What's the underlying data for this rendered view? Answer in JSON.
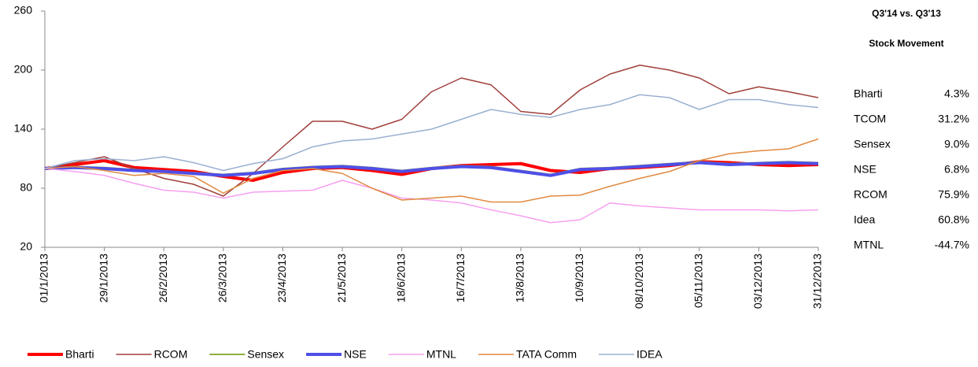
{
  "chart_data": {
    "type": "line",
    "x": [
      "2013-01-01",
      "2013-01-15",
      "2013-01-29",
      "2013-02-12",
      "2013-02-26",
      "2013-03-12",
      "2013-03-26",
      "2013-04-09",
      "2013-04-23",
      "2013-05-07",
      "2013-05-21",
      "2013-06-04",
      "2013-06-18",
      "2013-07-02",
      "2013-07-16",
      "2013-07-30",
      "2013-08-13",
      "2013-08-27",
      "2013-09-10",
      "2013-09-24",
      "2013-10-08",
      "2013-10-22",
      "2013-11-05",
      "2013-11-19",
      "2013-12-03",
      "2013-12-17",
      "2013-12-31"
    ],
    "xlim": [
      "2013-01-01",
      "2013-12-31"
    ],
    "xticks": [
      {
        "value": "2013-01-01",
        "label": "01/1/2013"
      },
      {
        "value": "2013-01-29",
        "label": "29/1/2013"
      },
      {
        "value": "2013-02-26",
        "label": "26/2/2013"
      },
      {
        "value": "2013-03-26",
        "label": "26/3/2013"
      },
      {
        "value": "2013-04-23",
        "label": "23/4/2013"
      },
      {
        "value": "2013-05-21",
        "label": "21/5/2013"
      },
      {
        "value": "2013-06-18",
        "label": "18/6/2013"
      },
      {
        "value": "2013-07-16",
        "label": "16/7/2013"
      },
      {
        "value": "2013-08-13",
        "label": "13/8/2013"
      },
      {
        "value": "2013-09-10",
        "label": "10/9/2013"
      },
      {
        "value": "2013-10-08",
        "label": "08/10/2013"
      },
      {
        "value": "2013-11-05",
        "label": "05/11/2013"
      },
      {
        "value": "2013-12-03",
        "label": "03/12/2013"
      },
      {
        "value": "2013-12-31",
        "label": "31/12/2013"
      }
    ],
    "ylim": [
      20,
      260
    ],
    "yticks": [
      20,
      80,
      140,
      200,
      260
    ],
    "series": [
      {
        "name": "Bharti",
        "color": "#ff0000",
        "width": 4,
        "values": [
          100,
          104,
          108,
          101,
          99,
          97,
          92,
          88,
          96,
          100,
          101,
          98,
          94,
          100,
          103,
          104,
          105,
          98,
          96,
          100,
          101,
          103,
          107,
          106,
          104,
          103,
          104
        ]
      },
      {
        "name": "RCOM",
        "color": "#a0403c",
        "width": 1.5,
        "values": [
          100,
          106,
          112,
          100,
          90,
          84,
          72,
          95,
          122,
          148,
          148,
          140,
          150,
          178,
          192,
          185,
          158,
          155,
          180,
          196,
          205,
          200,
          192,
          176,
          183,
          178,
          172
        ]
      },
      {
        "name": "Sensex",
        "color": "#8db040",
        "width": 2,
        "values": [
          100,
          102,
          101,
          99,
          97,
          96,
          94,
          96,
          100,
          102,
          103,
          101,
          98,
          101,
          103,
          102,
          98,
          94,
          100,
          101,
          103,
          105,
          107,
          105,
          106,
          107,
          106
        ]
      },
      {
        "name": "NSE",
        "color": "#4f4fe8",
        "width": 4,
        "values": [
          100,
          101,
          100,
          98,
          97,
          95,
          93,
          95,
          99,
          101,
          102,
          100,
          97,
          100,
          102,
          101,
          97,
          93,
          99,
          100,
          102,
          104,
          106,
          104,
          105,
          106,
          105
        ]
      },
      {
        "name": "MTNL",
        "color": "#f7a0f0",
        "width": 1.5,
        "values": [
          100,
          97,
          93,
          85,
          78,
          76,
          70,
          76,
          77,
          78,
          88,
          80,
          70,
          68,
          65,
          58,
          52,
          45,
          48,
          65,
          62,
          60,
          58,
          58,
          58,
          57,
          58
        ]
      },
      {
        "name": "TATA Comm",
        "color": "#e08a40",
        "width": 1.5,
        "values": [
          100,
          102,
          98,
          93,
          95,
          92,
          75,
          90,
          98,
          100,
          95,
          80,
          68,
          70,
          72,
          66,
          66,
          72,
          73,
          82,
          90,
          97,
          108,
          115,
          118,
          120,
          130
        ]
      },
      {
        "name": "IDEA",
        "color": "#9ab0d0",
        "width": 1.5,
        "values": [
          100,
          108,
          110,
          108,
          112,
          106,
          98,
          105,
          110,
          122,
          128,
          130,
          135,
          140,
          150,
          160,
          155,
          152,
          160,
          165,
          175,
          172,
          160,
          170,
          170,
          165,
          162
        ]
      }
    ],
    "table": {
      "title": "Q3'14 vs. Q3'13",
      "subtitle": "Stock Movement",
      "rows": [
        [
          "Bharti",
          "4.3%"
        ],
        [
          "TCOM",
          "31.2%"
        ],
        [
          "Sensex",
          "9.0%"
        ],
        [
          "NSE",
          "6.8%"
        ],
        [
          "RCOM",
          "75.9%"
        ],
        [
          "Idea",
          "60.8%"
        ],
        [
          "MTNL",
          "-44.7%"
        ]
      ]
    }
  }
}
